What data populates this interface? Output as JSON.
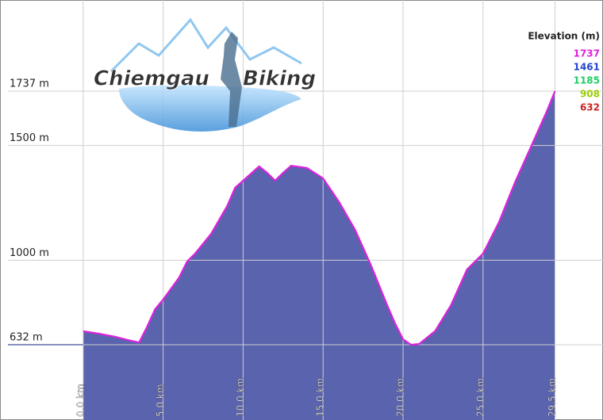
{
  "chart_data": {
    "type": "area",
    "logo": {
      "line1": "Chiemgau",
      "line2": "Biking"
    },
    "x": [
      0,
      1,
      2,
      3,
      3.5,
      4,
      4.5,
      5,
      6,
      6.5,
      7,
      8,
      9,
      9.5,
      10,
      11,
      11.5,
      12,
      12.5,
      13,
      14,
      15,
      16,
      17,
      18,
      19,
      19.5,
      20,
      20.5,
      21,
      22,
      23,
      24,
      25,
      26,
      27,
      28,
      29,
      29.5
    ],
    "values": [
      691,
      680,
      667,
      649,
      642,
      711,
      787,
      829,
      925,
      995,
      1029,
      1115,
      1236,
      1316,
      1347,
      1409,
      1381,
      1347,
      1381,
      1412,
      1402,
      1357,
      1254,
      1133,
      977,
      805,
      725,
      656,
      632,
      635,
      691,
      805,
      960,
      1029,
      1167,
      1340,
      1495,
      1651,
      1737
    ],
    "color": "#5a63ad",
    "xlim": [
      -5.2,
      32.5
    ],
    "ylim": [
      304,
      2134
    ],
    "xticks": [
      {
        "value": 0,
        "label": "0.0 km"
      },
      {
        "value": 5,
        "label": "5.0 km"
      },
      {
        "value": 10,
        "label": "10.0 km"
      },
      {
        "value": 15,
        "label": "15.0 km"
      },
      {
        "value": 20,
        "label": "20.0 km"
      },
      {
        "value": 25,
        "label": "25.0 km"
      },
      {
        "value": 29.5,
        "label": "29.5 km"
      }
    ],
    "yticks": [
      {
        "value": 632,
        "label": "632 m"
      },
      {
        "value": 1000,
        "label": "1000 m"
      },
      {
        "value": 1500,
        "label": "1500 m"
      },
      {
        "value": 1737,
        "label": "1737 m"
      }
    ],
    "grid": true,
    "legend": {
      "title": "Elevation (m)",
      "position": "top-right",
      "entries": [
        {
          "value": 1737,
          "color": "#dd22dd"
        },
        {
          "value": 1461,
          "color": "#2244cc"
        },
        {
          "value": 1185,
          "color": "#22cc66"
        },
        {
          "value": 908,
          "color": "#99cc00"
        },
        {
          "value": 632,
          "color": "#cc2222"
        }
      ]
    }
  }
}
